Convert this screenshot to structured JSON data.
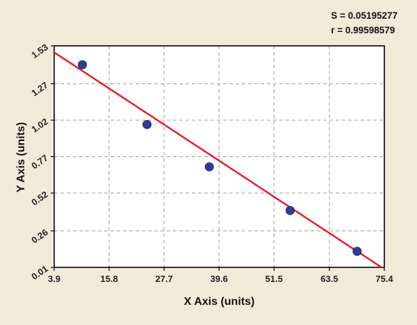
{
  "stats": {
    "s_line": "S = 0.05195277",
    "r_line": "r = 0.99598579"
  },
  "chart_data": {
    "type": "scatter",
    "title": "",
    "xlabel": "X Axis (units)",
    "ylabel": "Y Axis (units)",
    "xlim": [
      3.9,
      75.4
    ],
    "ylim": [
      0.01,
      1.53
    ],
    "x_ticks": [
      3.9,
      15.8,
      27.7,
      39.6,
      51.5,
      63.5,
      75.4
    ],
    "x_tick_labels": [
      "3.9",
      "15.8",
      "27.7",
      "39.6",
      "51.5",
      "63.5",
      "75.4"
    ],
    "y_ticks": [
      0.01,
      0.26,
      0.52,
      0.77,
      1.02,
      1.27,
      1.53
    ],
    "y_tick_labels": [
      "0.01",
      "0.26",
      "0.52",
      "0.77",
      "1.02",
      "1.27",
      "1.53"
    ],
    "points": [
      {
        "x": 10.0,
        "y": 1.4
      },
      {
        "x": 24.0,
        "y": 0.99
      },
      {
        "x": 37.5,
        "y": 0.7
      },
      {
        "x": 55.0,
        "y": 0.4
      },
      {
        "x": 69.5,
        "y": 0.12
      }
    ],
    "regression_line": {
      "x1": 3.9,
      "y1": 1.485,
      "x2": 74.8,
      "y2": 0.01
    },
    "grid": "dashed",
    "legend": "none",
    "annotations": [
      "S = 0.05195277",
      "r = 0.99598579"
    ],
    "colors": {
      "background": "#f0ead9",
      "plot_background": "#ffffff",
      "grid": "#9b9b9b",
      "point": "#2c3e96",
      "point_stroke": "#1d2a6b",
      "line": "#ee1c25",
      "text": "#111111"
    }
  }
}
